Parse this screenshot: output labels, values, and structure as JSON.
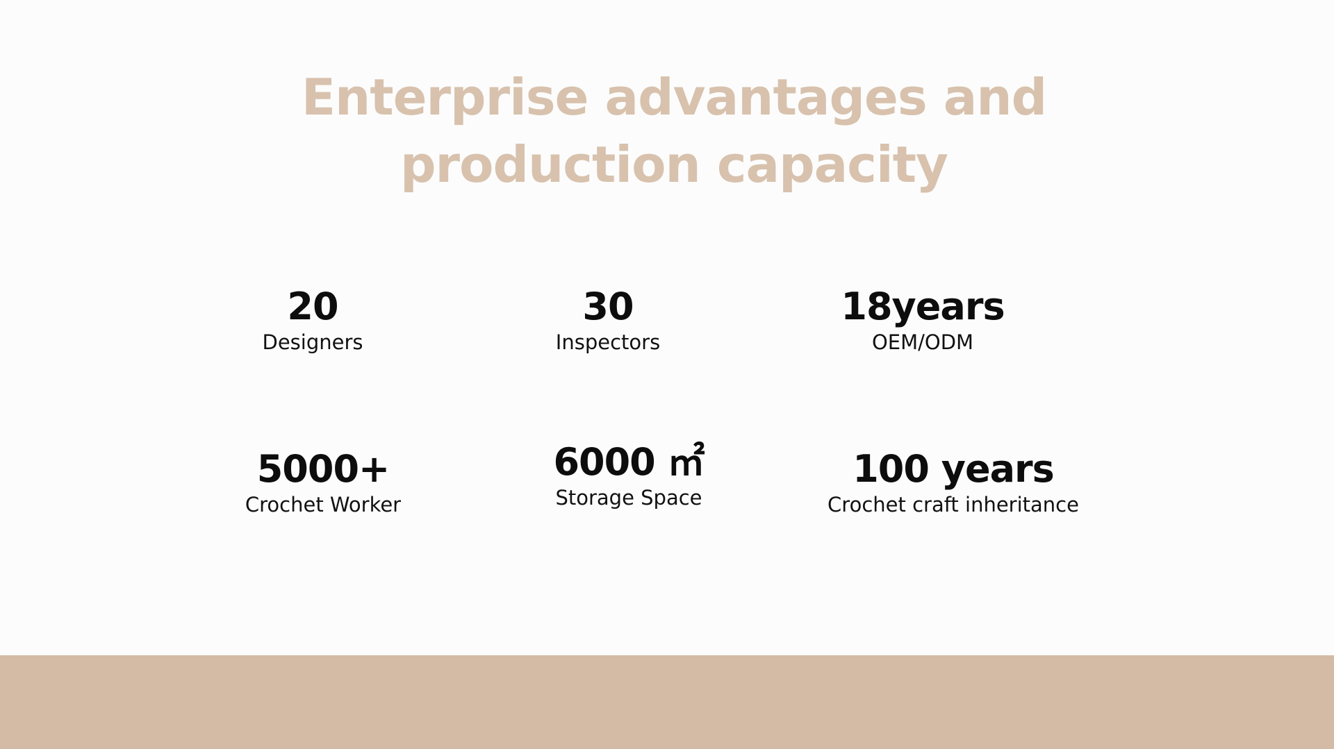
{
  "slide": {
    "title_line1": "Enterprise advantages and",
    "title_line2": "production capacity",
    "title_color": "#d8c2ad",
    "band_color": "#d4bba6",
    "stats": [
      {
        "value": "20",
        "label": "Designers"
      },
      {
        "value": "30",
        "label": "Inspectors"
      },
      {
        "value": "18years",
        "label": "OEM/ODM"
      },
      {
        "value": "5000+",
        "label": "Crochet Worker"
      },
      {
        "value": "6000 ㎡",
        "label": "Storage Space"
      },
      {
        "value": "100 years",
        "label": "Crochet craft inheritance"
      }
    ]
  }
}
